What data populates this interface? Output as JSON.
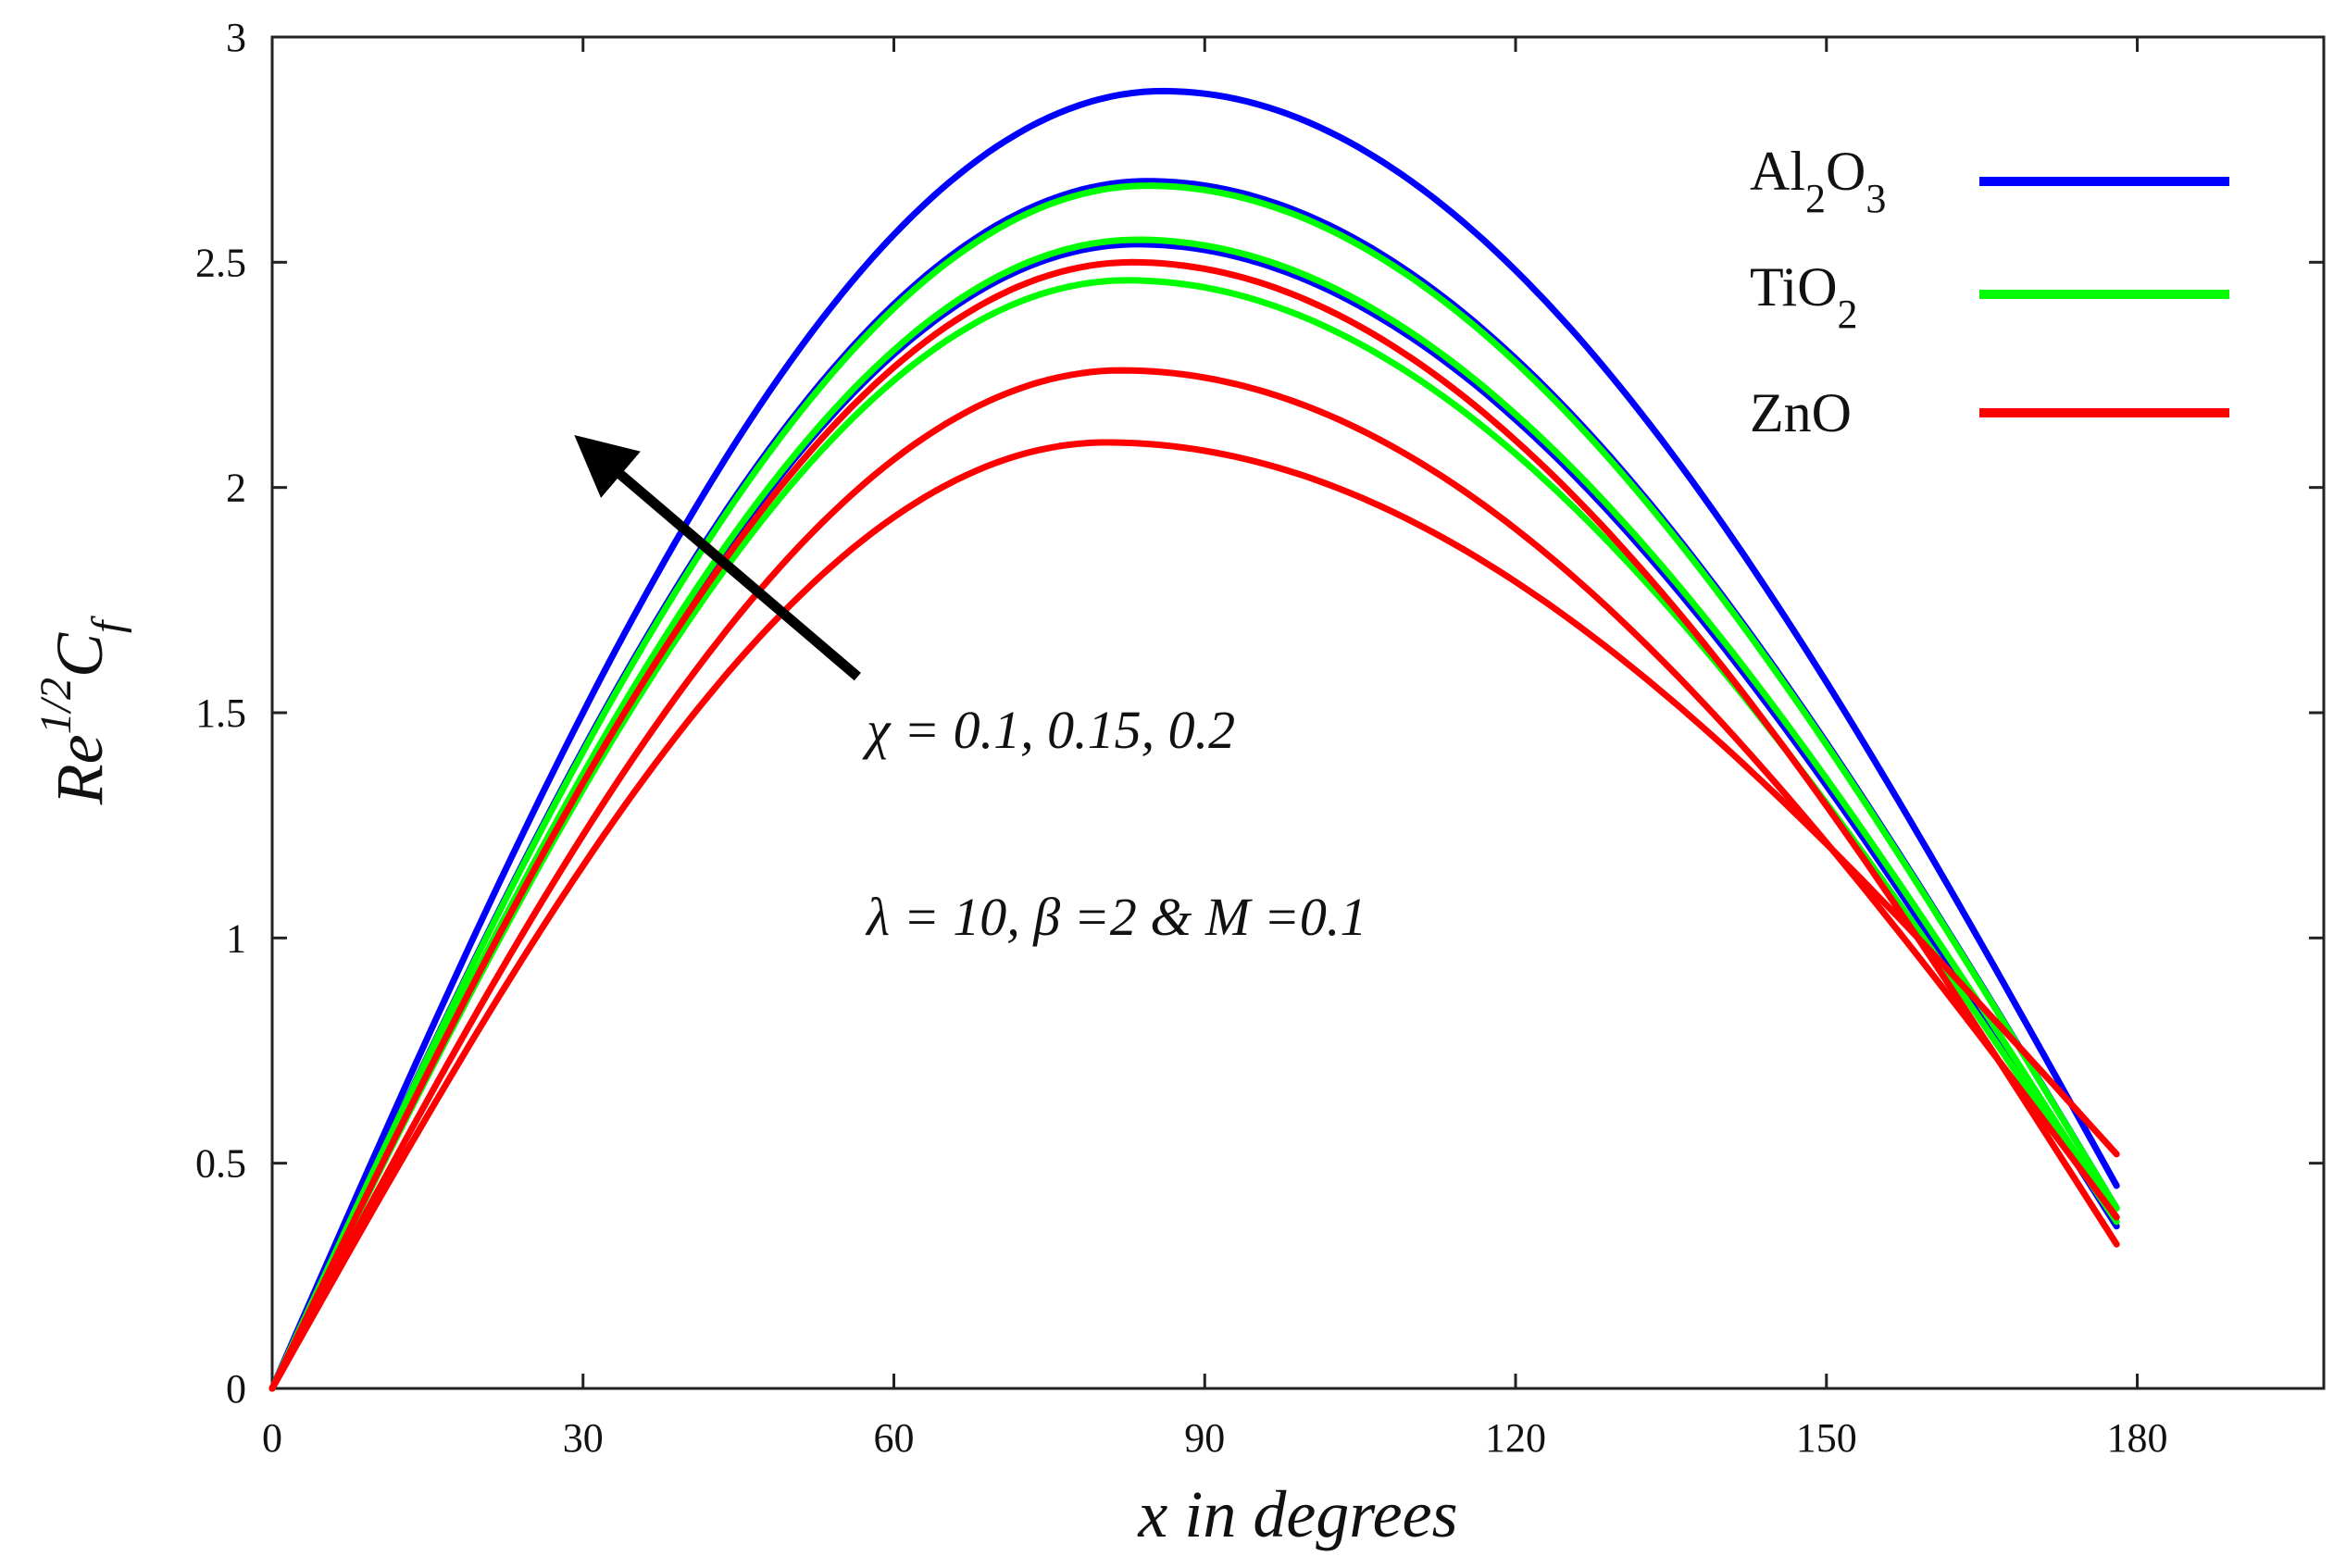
{
  "chart_data": {
    "type": "line",
    "xlabel": "x in degrees",
    "ylabel": {
      "base": "Re",
      "exponent": "1/2",
      "main": "C",
      "subscript": "f"
    },
    "xlim": [
      0,
      198
    ],
    "ylim": [
      0,
      3
    ],
    "xticks": [
      0,
      30,
      60,
      90,
      120,
      150,
      180
    ],
    "yticks": [
      0,
      0.5,
      1,
      1.5,
      2,
      2.5,
      3
    ],
    "ytick_labels": [
      "0",
      "0.5",
      "1",
      "1.5",
      "2",
      "2.5",
      "3"
    ],
    "grid": false,
    "legend": {
      "placement": "top-right",
      "entries": [
        {
          "name": "Al2O3",
          "parts": [
            "Al",
            "2",
            "O",
            "3"
          ],
          "color": "#0000ff"
        },
        {
          "name": "TiO2",
          "parts": [
            "TiO",
            "2"
          ],
          "color": "#00ff00"
        },
        {
          "name": "ZnO",
          "parts": [
            "ZnO"
          ],
          "color": "#ff0000"
        }
      ]
    },
    "annotations": {
      "arrow_label": "χ = 0.1, 0.15, 0.2",
      "params": "λ = 10, β =2 & M =0.1",
      "arrow": {
        "from": [
          56.5,
          1.58
        ],
        "to": [
          30.5,
          2.09
        ]
      }
    },
    "series": [
      {
        "name": "Al2O3, χ = 0.2",
        "color": "#0000ff",
        "x_peak": 86,
        "peak": 2.88,
        "end": 0.45
      },
      {
        "name": "Al2O3, χ = 0.15",
        "color": "#0000ff",
        "x_peak": 84.5,
        "peak": 2.68,
        "end": 0.4
      },
      {
        "name": "Al2O3, χ = 0.1",
        "color": "#0000ff",
        "x_peak": 83.5,
        "peak": 2.54,
        "end": 0.36
      },
      {
        "name": "TiO2, χ = 0.2",
        "color": "#00ff00",
        "x_peak": 84.5,
        "peak": 2.67,
        "end": 0.4
      },
      {
        "name": "TiO2, χ = 0.15",
        "color": "#00ff00",
        "x_peak": 83.5,
        "peak": 2.55,
        "end": 0.38
      },
      {
        "name": "TiO2, χ = 0.1",
        "color": "#00ff00",
        "x_peak": 82.5,
        "peak": 2.46,
        "end": 0.37
      },
      {
        "name": "ZnO, χ = 0.2",
        "color": "#ff0000",
        "x_peak": 83,
        "peak": 2.5,
        "end": 0.32
      },
      {
        "name": "ZnO, χ = 0.15",
        "color": "#ff0000",
        "x_peak": 82,
        "peak": 2.26,
        "end": 0.38
      },
      {
        "name": "ZnO, χ = 0.1",
        "color": "#ff0000",
        "x_peak": 80.5,
        "peak": 2.1,
        "end": 0.52
      }
    ]
  }
}
